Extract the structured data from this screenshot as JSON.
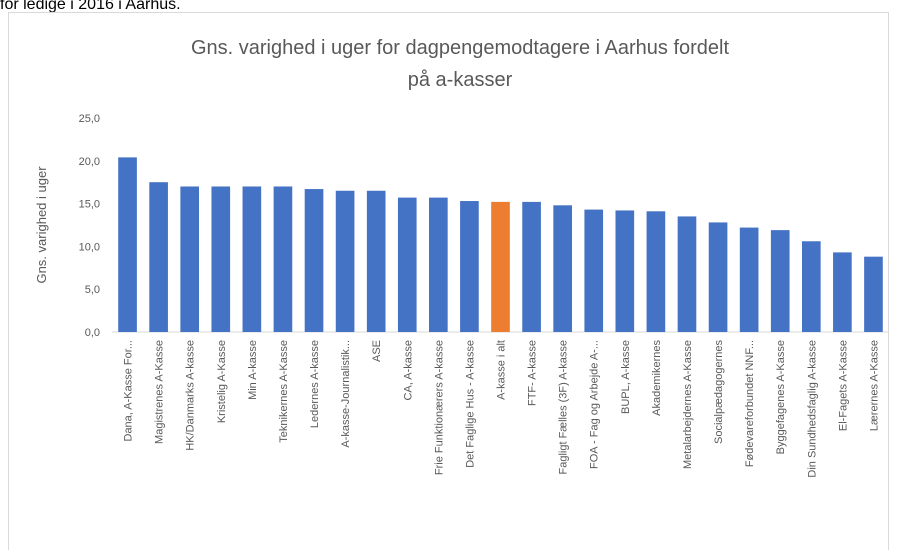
{
  "caption": "for ledige i 2016 i Aarhus.",
  "chart_data": {
    "type": "bar",
    "title": [
      "Gns. varighed i uger for dagpengemodtagere i Aarhus fordelt",
      "på a-kasser"
    ],
    "y_label": "Gns. varighed i uger",
    "categories": [
      "Dana, A-Kasse For...",
      "Magistrenes A-Kasse",
      "HK/Danmarks A-kasse",
      "Kristelig A-Kasse",
      "Min A-kasse",
      "Teknikernes A-Kasse",
      "Ledernes A-kasse",
      "A-kasse-Journalistik...",
      "ASE",
      "CA, A-kasse",
      "Frie Funktionærers A-kasse",
      "Det Faglige Hus - A-kasse",
      "A-kasse i alt",
      "FTF- A-kasse",
      "Fagligt Fælles (3F) A-kasse",
      "FOA - Fag og Arbejde A-...",
      "BUPL, A-kasse",
      "Akademikernes",
      "Metalarbejdernes A-Kasse",
      "Socialpædagogernes",
      "Fødevareforbundet NNF...",
      "Byggefagenes A-Kasse",
      "Din Sundhedsfaglig A-kasse",
      "El-Fagets A-Kasse",
      "Lærernes A-Kasse"
    ],
    "values": [
      20.4,
      17.5,
      17.0,
      17.0,
      17.0,
      17.0,
      16.7,
      16.5,
      16.5,
      15.7,
      15.7,
      15.3,
      15.2,
      15.2,
      14.8,
      14.3,
      14.2,
      14.1,
      13.5,
      12.8,
      12.2,
      11.9,
      10.6,
      9.3,
      8.8
    ],
    "color": "#4472c4",
    "highlight": {
      "index": 12,
      "color": "#ed7d31"
    },
    "ylim": [
      0,
      25
    ],
    "yticks": [
      {
        "value": 0,
        "label": "0,0"
      },
      {
        "value": 5,
        "label": "5,0"
      },
      {
        "value": 10,
        "label": "10,0"
      },
      {
        "value": 15,
        "label": "15,0"
      },
      {
        "value": 20,
        "label": "20,0"
      },
      {
        "value": 25,
        "label": "25,0"
      }
    ],
    "grid": false
  }
}
